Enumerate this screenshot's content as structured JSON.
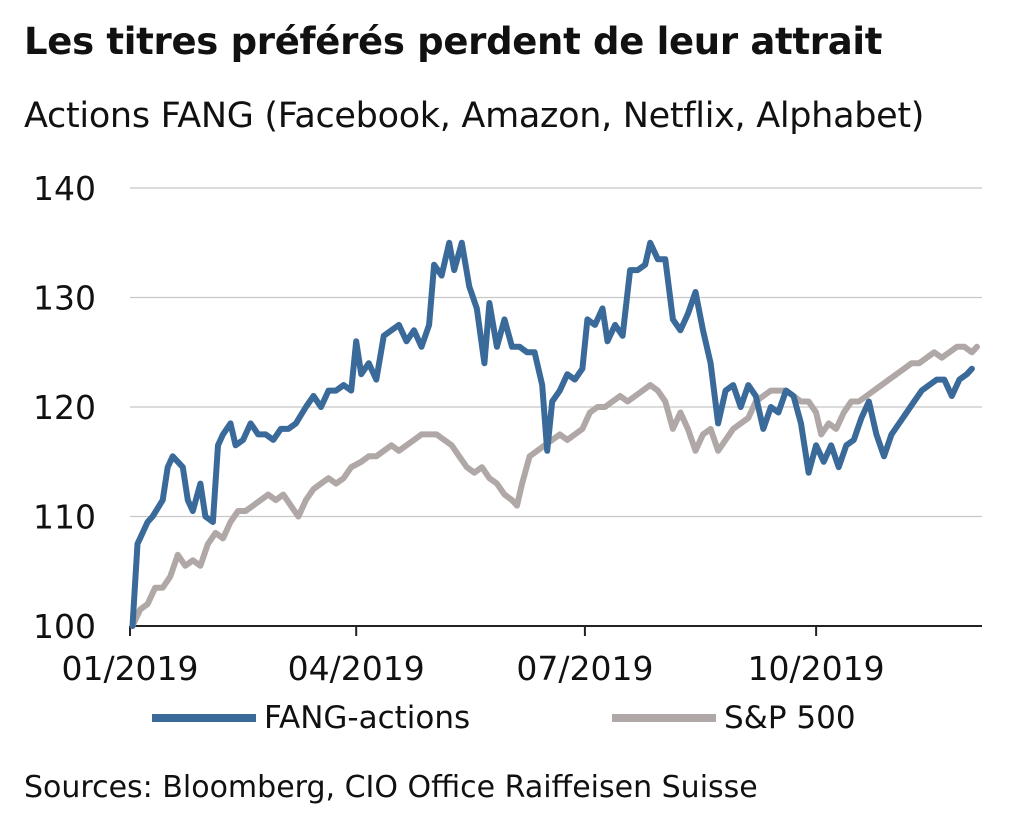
{
  "title": "Les titres préférés perdent de leur attrait",
  "subtitle": "Actions FANG (Facebook, Amazon, Netflix, Alphabet)",
  "source": "Sources: Bloomberg, CIO Office Raiffeisen Suisse",
  "colors": {
    "fang": "#3a6a9a",
    "sp500": "#b0a8a6",
    "grid": "#c8c8c8",
    "axis": "#222222"
  },
  "chart_data": {
    "type": "line",
    "ylim": [
      100,
      140
    ],
    "yticks": [
      100,
      110,
      120,
      130,
      140
    ],
    "xlim": [
      "2019-01-01",
      "2019-12-06"
    ],
    "xticks": [
      {
        "date": "2019-01-01",
        "label": "01/2019"
      },
      {
        "date": "2019-04-01",
        "label": "04/2019"
      },
      {
        "date": "2019-07-01",
        "label": "07/2019"
      },
      {
        "date": "2019-10-01",
        "label": "10/2019"
      }
    ],
    "grid": true,
    "legend_position": "bottom",
    "series": [
      {
        "name": "FANG-actions",
        "color": "#3a6a9a",
        "points": [
          [
            "2019-01-02",
            100.0
          ],
          [
            "2019-01-04",
            107.5
          ],
          [
            "2019-01-08",
            109.5
          ],
          [
            "2019-01-10",
            110.0
          ],
          [
            "2019-01-14",
            111.5
          ],
          [
            "2019-01-16",
            114.5
          ],
          [
            "2019-01-18",
            115.5
          ],
          [
            "2019-01-22",
            114.5
          ],
          [
            "2019-01-24",
            111.5
          ],
          [
            "2019-01-26",
            110.5
          ],
          [
            "2019-01-29",
            113.0
          ],
          [
            "2019-01-31",
            110.0
          ],
          [
            "2019-02-03",
            109.5
          ],
          [
            "2019-02-05",
            116.5
          ],
          [
            "2019-02-07",
            117.5
          ],
          [
            "2019-02-10",
            118.5
          ],
          [
            "2019-02-12",
            116.5
          ],
          [
            "2019-02-15",
            117.0
          ],
          [
            "2019-02-18",
            118.5
          ],
          [
            "2019-02-21",
            117.5
          ],
          [
            "2019-02-24",
            117.5
          ],
          [
            "2019-02-27",
            117.0
          ],
          [
            "2019-03-02",
            118.0
          ],
          [
            "2019-03-05",
            118.0
          ],
          [
            "2019-03-08",
            118.5
          ],
          [
            "2019-03-12",
            120.0
          ],
          [
            "2019-03-15",
            121.0
          ],
          [
            "2019-03-18",
            120.0
          ],
          [
            "2019-03-21",
            121.5
          ],
          [
            "2019-03-24",
            121.5
          ],
          [
            "2019-03-27",
            122.0
          ],
          [
            "2019-03-30",
            121.5
          ],
          [
            "2019-04-01",
            126.0
          ],
          [
            "2019-04-03",
            123.0
          ],
          [
            "2019-04-06",
            124.0
          ],
          [
            "2019-04-09",
            122.5
          ],
          [
            "2019-04-12",
            126.5
          ],
          [
            "2019-04-15",
            127.0
          ],
          [
            "2019-04-18",
            127.5
          ],
          [
            "2019-04-21",
            126.0
          ],
          [
            "2019-04-24",
            127.0
          ],
          [
            "2019-04-27",
            125.5
          ],
          [
            "2019-04-30",
            127.5
          ],
          [
            "2019-05-02",
            133.0
          ],
          [
            "2019-05-05",
            132.0
          ],
          [
            "2019-05-08",
            135.0
          ],
          [
            "2019-05-10",
            132.5
          ],
          [
            "2019-05-13",
            135.0
          ],
          [
            "2019-05-16",
            131.0
          ],
          [
            "2019-05-19",
            129.0
          ],
          [
            "2019-05-22",
            124.0
          ],
          [
            "2019-05-24",
            129.5
          ],
          [
            "2019-05-27",
            125.5
          ],
          [
            "2019-05-30",
            128.0
          ],
          [
            "2019-06-02",
            125.5
          ],
          [
            "2019-06-05",
            125.5
          ],
          [
            "2019-06-08",
            125.0
          ],
          [
            "2019-06-11",
            125.0
          ],
          [
            "2019-06-14",
            122.0
          ],
          [
            "2019-06-16",
            116.0
          ],
          [
            "2019-06-18",
            120.5
          ],
          [
            "2019-06-21",
            121.5
          ],
          [
            "2019-06-24",
            123.0
          ],
          [
            "2019-06-27",
            122.5
          ],
          [
            "2019-06-30",
            123.5
          ],
          [
            "2019-07-02",
            128.0
          ],
          [
            "2019-07-05",
            127.5
          ],
          [
            "2019-07-08",
            129.0
          ],
          [
            "2019-07-10",
            126.0
          ],
          [
            "2019-07-13",
            127.5
          ],
          [
            "2019-07-16",
            126.5
          ],
          [
            "2019-07-19",
            132.5
          ],
          [
            "2019-07-22",
            132.5
          ],
          [
            "2019-07-25",
            133.0
          ],
          [
            "2019-07-27",
            135.0
          ],
          [
            "2019-07-30",
            133.5
          ],
          [
            "2019-08-02",
            133.5
          ],
          [
            "2019-08-05",
            128.0
          ],
          [
            "2019-08-08",
            127.0
          ],
          [
            "2019-08-11",
            128.5
          ],
          [
            "2019-08-14",
            130.5
          ],
          [
            "2019-08-17",
            127.0
          ],
          [
            "2019-08-20",
            124.0
          ],
          [
            "2019-08-23",
            118.5
          ],
          [
            "2019-08-26",
            121.5
          ],
          [
            "2019-08-29",
            122.0
          ],
          [
            "2019-09-01",
            120.0
          ],
          [
            "2019-09-04",
            122.0
          ],
          [
            "2019-09-07",
            121.0
          ],
          [
            "2019-09-10",
            118.0
          ],
          [
            "2019-09-13",
            120.0
          ],
          [
            "2019-09-16",
            119.5
          ],
          [
            "2019-09-19",
            121.5
          ],
          [
            "2019-09-22",
            121.0
          ],
          [
            "2019-09-25",
            118.5
          ],
          [
            "2019-09-28",
            114.0
          ],
          [
            "2019-10-01",
            116.5
          ],
          [
            "2019-10-04",
            115.0
          ],
          [
            "2019-10-07",
            116.5
          ],
          [
            "2019-10-10",
            114.5
          ],
          [
            "2019-10-13",
            116.5
          ],
          [
            "2019-10-16",
            117.0
          ],
          [
            "2019-10-19",
            119.0
          ],
          [
            "2019-10-22",
            120.5
          ],
          [
            "2019-10-25",
            117.5
          ],
          [
            "2019-10-28",
            115.5
          ],
          [
            "2019-10-31",
            117.5
          ],
          [
            "2019-11-03",
            118.5
          ],
          [
            "2019-11-06",
            119.5
          ],
          [
            "2019-11-09",
            120.5
          ],
          [
            "2019-11-12",
            121.5
          ],
          [
            "2019-11-15",
            122.0
          ],
          [
            "2019-11-18",
            122.5
          ],
          [
            "2019-11-21",
            122.5
          ],
          [
            "2019-11-24",
            121.0
          ],
          [
            "2019-11-27",
            122.5
          ],
          [
            "2019-11-30",
            123.0
          ],
          [
            "2019-12-02",
            123.5
          ]
        ]
      },
      {
        "name": "S&P 500",
        "color": "#b0a8a6",
        "points": [
          [
            "2019-01-02",
            100.0
          ],
          [
            "2019-01-05",
            101.5
          ],
          [
            "2019-01-08",
            102.0
          ],
          [
            "2019-01-11",
            103.5
          ],
          [
            "2019-01-14",
            103.5
          ],
          [
            "2019-01-17",
            104.5
          ],
          [
            "2019-01-20",
            106.5
          ],
          [
            "2019-01-23",
            105.5
          ],
          [
            "2019-01-26",
            106.0
          ],
          [
            "2019-01-29",
            105.5
          ],
          [
            "2019-02-01",
            107.5
          ],
          [
            "2019-02-04",
            108.5
          ],
          [
            "2019-02-07",
            108.0
          ],
          [
            "2019-02-10",
            109.5
          ],
          [
            "2019-02-13",
            110.5
          ],
          [
            "2019-02-16",
            110.5
          ],
          [
            "2019-02-19",
            111.0
          ],
          [
            "2019-02-22",
            111.5
          ],
          [
            "2019-02-25",
            112.0
          ],
          [
            "2019-02-28",
            111.5
          ],
          [
            "2019-03-03",
            112.0
          ],
          [
            "2019-03-06",
            111.0
          ],
          [
            "2019-03-09",
            110.0
          ],
          [
            "2019-03-12",
            111.5
          ],
          [
            "2019-03-15",
            112.5
          ],
          [
            "2019-03-18",
            113.0
          ],
          [
            "2019-03-21",
            113.5
          ],
          [
            "2019-03-24",
            113.0
          ],
          [
            "2019-03-27",
            113.5
          ],
          [
            "2019-03-30",
            114.5
          ],
          [
            "2019-04-03",
            115.0
          ],
          [
            "2019-04-06",
            115.5
          ],
          [
            "2019-04-09",
            115.5
          ],
          [
            "2019-04-12",
            116.0
          ],
          [
            "2019-04-15",
            116.5
          ],
          [
            "2019-04-18",
            116.0
          ],
          [
            "2019-04-21",
            116.5
          ],
          [
            "2019-04-24",
            117.0
          ],
          [
            "2019-04-27",
            117.5
          ],
          [
            "2019-04-30",
            117.5
          ],
          [
            "2019-05-03",
            117.5
          ],
          [
            "2019-05-06",
            117.0
          ],
          [
            "2019-05-09",
            116.5
          ],
          [
            "2019-05-12",
            115.5
          ],
          [
            "2019-05-15",
            114.5
          ],
          [
            "2019-05-18",
            114.0
          ],
          [
            "2019-05-21",
            114.5
          ],
          [
            "2019-05-24",
            113.5
          ],
          [
            "2019-05-27",
            113.0
          ],
          [
            "2019-05-30",
            112.0
          ],
          [
            "2019-06-02",
            111.5
          ],
          [
            "2019-06-04",
            111.0
          ],
          [
            "2019-06-06",
            113.0
          ],
          [
            "2019-06-09",
            115.5
          ],
          [
            "2019-06-12",
            116.0
          ],
          [
            "2019-06-15",
            116.5
          ],
          [
            "2019-06-18",
            117.0
          ],
          [
            "2019-06-21",
            117.5
          ],
          [
            "2019-06-24",
            117.0
          ],
          [
            "2019-06-27",
            117.5
          ],
          [
            "2019-06-30",
            118.0
          ],
          [
            "2019-07-03",
            119.5
          ],
          [
            "2019-07-06",
            120.0
          ],
          [
            "2019-07-09",
            120.0
          ],
          [
            "2019-07-12",
            120.5
          ],
          [
            "2019-07-15",
            121.0
          ],
          [
            "2019-07-18",
            120.5
          ],
          [
            "2019-07-21",
            121.0
          ],
          [
            "2019-07-24",
            121.5
          ],
          [
            "2019-07-27",
            122.0
          ],
          [
            "2019-07-30",
            121.5
          ],
          [
            "2019-08-02",
            120.5
          ],
          [
            "2019-08-05",
            118.0
          ],
          [
            "2019-08-08",
            119.5
          ],
          [
            "2019-08-11",
            118.0
          ],
          [
            "2019-08-14",
            116.0
          ],
          [
            "2019-08-17",
            117.5
          ],
          [
            "2019-08-20",
            118.0
          ],
          [
            "2019-08-23",
            116.0
          ],
          [
            "2019-08-26",
            117.0
          ],
          [
            "2019-08-29",
            118.0
          ],
          [
            "2019-09-01",
            118.5
          ],
          [
            "2019-09-04",
            119.0
          ],
          [
            "2019-09-07",
            120.5
          ],
          [
            "2019-09-10",
            121.0
          ],
          [
            "2019-09-13",
            121.5
          ],
          [
            "2019-09-16",
            121.5
          ],
          [
            "2019-09-19",
            121.5
          ],
          [
            "2019-09-22",
            121.0
          ],
          [
            "2019-09-25",
            120.5
          ],
          [
            "2019-09-28",
            120.5
          ],
          [
            "2019-10-01",
            119.5
          ],
          [
            "2019-10-03",
            117.5
          ],
          [
            "2019-10-06",
            118.5
          ],
          [
            "2019-10-09",
            118.0
          ],
          [
            "2019-10-12",
            119.5
          ],
          [
            "2019-10-15",
            120.5
          ],
          [
            "2019-10-18",
            120.5
          ],
          [
            "2019-10-21",
            121.0
          ],
          [
            "2019-10-24",
            121.5
          ],
          [
            "2019-10-27",
            122.0
          ],
          [
            "2019-10-30",
            122.5
          ],
          [
            "2019-11-02",
            123.0
          ],
          [
            "2019-11-05",
            123.5
          ],
          [
            "2019-11-08",
            124.0
          ],
          [
            "2019-11-11",
            124.0
          ],
          [
            "2019-11-14",
            124.5
          ],
          [
            "2019-11-17",
            125.0
          ],
          [
            "2019-11-20",
            124.5
          ],
          [
            "2019-11-23",
            125.0
          ],
          [
            "2019-11-26",
            125.5
          ],
          [
            "2019-11-29",
            125.5
          ],
          [
            "2019-12-02",
            125.0
          ],
          [
            "2019-12-04",
            125.5
          ]
        ]
      }
    ]
  }
}
